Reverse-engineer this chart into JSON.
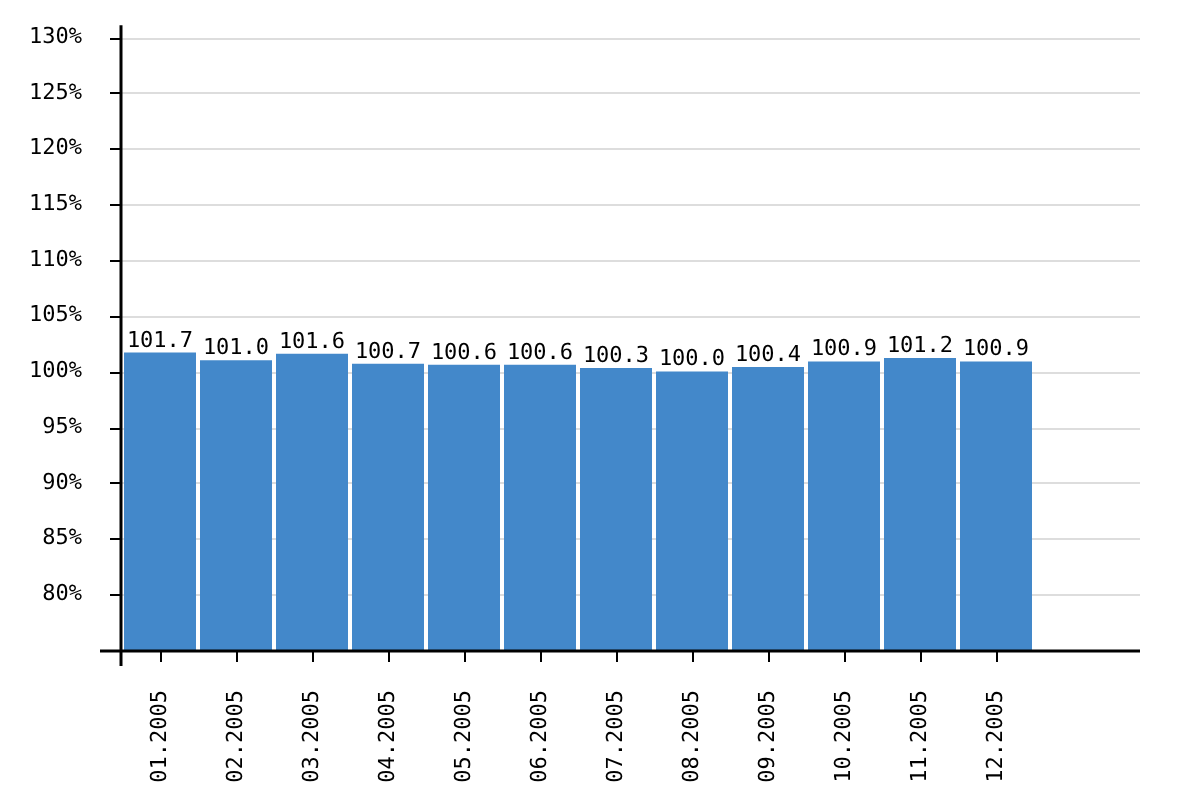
{
  "chart_data": {
    "type": "bar",
    "categories": [
      "01.2005",
      "02.2005",
      "03.2005",
      "04.2005",
      "05.2005",
      "06.2005",
      "07.2005",
      "08.2005",
      "09.2005",
      "10.2005",
      "11.2005",
      "12.2005"
    ],
    "values": [
      101.7,
      101.0,
      101.6,
      100.7,
      100.6,
      100.6,
      100.3,
      100.0,
      100.4,
      100.9,
      101.2,
      100.9
    ],
    "value_labels": [
      "101.7",
      "101.0",
      "101.6",
      "100.7",
      "100.6",
      "100.6",
      "100.3",
      "100.0",
      "100.4",
      "100.9",
      "101.2",
      "100.9"
    ],
    "color": "#4388ca",
    "ylim": [
      75,
      130
    ],
    "yticks": [
      {
        "value": 75,
        "label": null
      },
      {
        "value": 80,
        "label": "80%"
      },
      {
        "value": 85,
        "label": "85%"
      },
      {
        "value": 90,
        "label": "90%"
      },
      {
        "value": 95,
        "label": "95%"
      },
      {
        "value": 100,
        "label": "100%"
      },
      {
        "value": 105,
        "label": "105%"
      },
      {
        "value": 110,
        "label": "110%"
      },
      {
        "value": 115,
        "label": "115%"
      },
      {
        "value": 120,
        "label": "120%"
      },
      {
        "value": 125,
        "label": "125%"
      },
      {
        "value": 130,
        "label": "130%"
      }
    ],
    "grid": "y"
  }
}
